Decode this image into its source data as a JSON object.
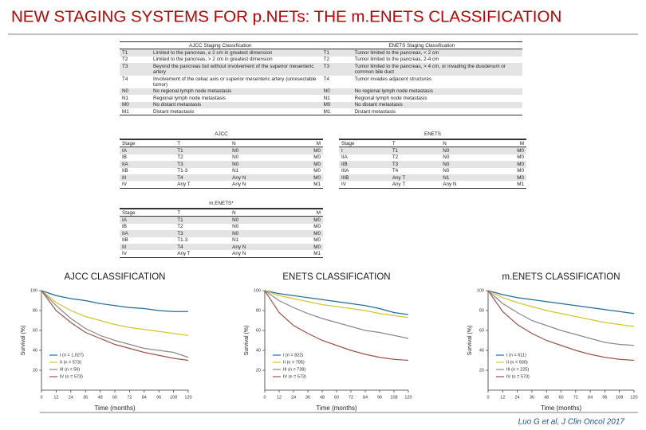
{
  "header": {
    "title": "NEW STAGING SYSTEMS FOR p.NETs: THE m.ENETS CLASSIFICATION"
  },
  "classification_table": {
    "headers": [
      "AJCC Staging Classification",
      "ENETS Staging Classification"
    ],
    "rows": [
      [
        "T1",
        "Limited to the pancreas, ≤ 2 cm in greatest dimension",
        "T1",
        "Tumor limited to the pancreas, < 2 cm"
      ],
      [
        "T2",
        "Limited to the pancreas, > 2 cm in greatest dimension",
        "T2",
        "Tumor limited to the pancreas, 2-4 cm"
      ],
      [
        "T3",
        "Beyond the pancreas but without involvement of the superior mesenteric artery",
        "T3",
        "Tumor limited to the pancreas, > 4 cm, or invading the duodenum or common bile duct"
      ],
      [
        "T4",
        "Involvement of the celiac axis or superior mesenteric artery (unresectable tumor)",
        "T4",
        "Tumor invades adjacent structures"
      ],
      [
        "N0",
        "No regional lymph node metastasis",
        "N0",
        "No regional lymph node metastasis"
      ],
      [
        "N1",
        "Regional lymph node metastasis",
        "N1",
        "Regional lymph node metastasis"
      ],
      [
        "M0",
        "No distant metastasis",
        "M0",
        "No distant metastasis"
      ],
      [
        "M1",
        "Distant metastasis",
        "M1",
        "Distant metastasis"
      ]
    ]
  },
  "stage_tables": [
    {
      "title": "AJCC",
      "columns": [
        "Stage",
        "T",
        "N",
        "M"
      ],
      "rows": [
        [
          "IA",
          "T1",
          "N0",
          "M0"
        ],
        [
          "IB",
          "T2",
          "N0",
          "M0"
        ],
        [
          "IIA",
          "T3",
          "N0",
          "M0"
        ],
        [
          "IIB",
          "T1-3",
          "N1",
          "M0"
        ],
        [
          "III",
          "T4",
          "Any N",
          "M0"
        ],
        [
          "IV",
          "Any T",
          "Any N",
          "M1"
        ]
      ]
    },
    {
      "title": "ENETS",
      "columns": [
        "Stage",
        "T",
        "N",
        "M"
      ],
      "rows": [
        [
          "I",
          "T1",
          "N0",
          "M0"
        ],
        [
          "IIA",
          "T2",
          "N0",
          "M0"
        ],
        [
          "IIB",
          "T3",
          "N0",
          "M0"
        ],
        [
          "IIIA",
          "T4",
          "N0",
          "M0"
        ],
        [
          "IIIB",
          "Any T",
          "N1",
          "M0"
        ],
        [
          "IV",
          "Any T",
          "Any N",
          "M1"
        ]
      ]
    },
    {
      "title": "m.ENETS*",
      "columns": [
        "Stage",
        "T",
        "N",
        "M"
      ],
      "rows": [
        [
          "IA",
          "T1",
          "N0",
          "M0"
        ],
        [
          "IB",
          "T2",
          "N0",
          "M0"
        ],
        [
          "IIA",
          "T3",
          "N0",
          "M0"
        ],
        [
          "IIB",
          "T1-3",
          "N1",
          "M0"
        ],
        [
          "III",
          "T4",
          "Any N",
          "M0"
        ],
        [
          "IV",
          "Any T",
          "Any N",
          "M1"
        ]
      ]
    }
  ],
  "chart_data": [
    {
      "type": "line",
      "title": "AJCC CLASSIFICATION",
      "x_label": "Time (months)",
      "y_label": "Survival (%)",
      "x": [
        0,
        12,
        24,
        36,
        48,
        60,
        72,
        84,
        96,
        108,
        120
      ],
      "xlim": [
        0,
        120
      ],
      "xticks": [
        0,
        12,
        24,
        36,
        48,
        60,
        72,
        84,
        96,
        108,
        120
      ],
      "ylim": [
        0,
        100
      ],
      "yticks": [
        20,
        40,
        60,
        80,
        100
      ],
      "series": [
        {
          "name": "I (n = 1,027)",
          "color": "#1f6c9e",
          "values": [
            100,
            95,
            92,
            90,
            87,
            85,
            83,
            82,
            80,
            79,
            79
          ]
        },
        {
          "name": "II (n = 573)",
          "color": "#d4c52c",
          "values": [
            100,
            88,
            80,
            74,
            70,
            66,
            63,
            61,
            59,
            57,
            55
          ]
        },
        {
          "name": "III (n = 56)",
          "color": "#8a8a8a",
          "values": [
            100,
            85,
            72,
            62,
            55,
            50,
            46,
            42,
            40,
            38,
            33
          ]
        },
        {
          "name": "IV (n = 573)",
          "color": "#a0524a",
          "values": [
            100,
            80,
            68,
            58,
            52,
            46,
            42,
            38,
            35,
            32,
            30
          ]
        }
      ]
    },
    {
      "type": "line",
      "title": "ENETS CLASSIFICATION",
      "x_label": "Time (months)",
      "y_label": "Survival (%)",
      "x": [
        0,
        12,
        24,
        36,
        48,
        60,
        72,
        84,
        96,
        108,
        120
      ],
      "xlim": [
        0,
        120
      ],
      "xticks": [
        0,
        12,
        24,
        36,
        48,
        60,
        72,
        84,
        96,
        108,
        120
      ],
      "ylim": [
        0,
        100
      ],
      "yticks": [
        20,
        40,
        60,
        80,
        100
      ],
      "series": [
        {
          "name": "I (n = 822)",
          "color": "#1f6c9e",
          "values": [
            100,
            97,
            95,
            93,
            91,
            89,
            87,
            85,
            82,
            78,
            76
          ]
        },
        {
          "name": "II (n = 795)",
          "color": "#d4c52c",
          "values": [
            100,
            95,
            92,
            89,
            86,
            84,
            82,
            80,
            77,
            75,
            73
          ]
        },
        {
          "name": "III (n = 739)",
          "color": "#8a8a8a",
          "values": [
            100,
            90,
            83,
            77,
            72,
            68,
            64,
            60,
            58,
            55,
            52
          ]
        },
        {
          "name": "IV (n = 573)",
          "color": "#a0524a",
          "values": [
            100,
            78,
            65,
            57,
            50,
            45,
            40,
            36,
            33,
            31,
            30
          ]
        }
      ]
    },
    {
      "type": "line",
      "title": "m.ENETS CLASSIFICATION",
      "x_label": "Time (months)",
      "y_label": "Survival (%)",
      "x": [
        0,
        12,
        24,
        36,
        48,
        60,
        72,
        84,
        96,
        108,
        120
      ],
      "xlim": [
        0,
        120
      ],
      "xticks": [
        0,
        12,
        24,
        36,
        48,
        60,
        72,
        84,
        96,
        108,
        120
      ],
      "ylim": [
        0,
        100
      ],
      "yticks": [
        20,
        40,
        60,
        80,
        100
      ],
      "series": [
        {
          "name": "I (n = 611)",
          "color": "#1f6c9e",
          "values": [
            100,
            96,
            93,
            91,
            89,
            87,
            85,
            83,
            81,
            79,
            77
          ]
        },
        {
          "name": "II (n = 930)",
          "color": "#d4c52c",
          "values": [
            100,
            93,
            88,
            84,
            80,
            77,
            74,
            71,
            68,
            66,
            64
          ]
        },
        {
          "name": "III (n = 225)",
          "color": "#8a8a8a",
          "values": [
            100,
            87,
            78,
            70,
            65,
            60,
            56,
            52,
            48,
            46,
            45
          ]
        },
        {
          "name": "IV (n = 573)",
          "color": "#a0524a",
          "values": [
            100,
            79,
            66,
            57,
            50,
            45,
            40,
            36,
            33,
            31,
            30
          ]
        }
      ]
    }
  ],
  "citation": "Luo G et al, J Clin Oncol 2017"
}
